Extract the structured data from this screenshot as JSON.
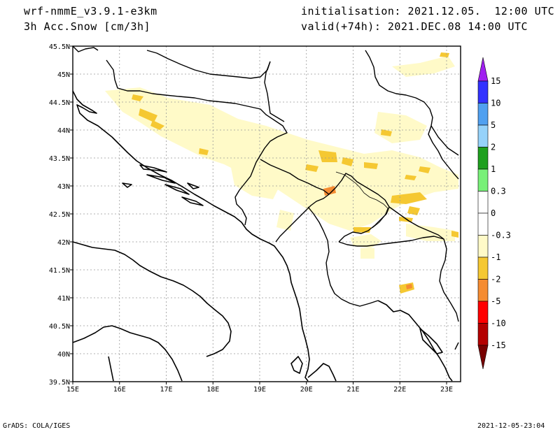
{
  "header": {
    "model": "wrf-nmmE_v3.9.1-e3km",
    "field": "3h Acc.Snow [cm/3h]",
    "init": "initialisation: 2021.12.05.  12:00 UTC",
    "valid": "valid(+74h): 2021.DEC.08 14:00 UTC"
  },
  "footer": {
    "credit": "GrADS: COLA/IGES",
    "timestamp": "2021-12-05-23:04"
  },
  "map": {
    "lon_range": [
      15,
      23.3
    ],
    "lat_range": [
      39.5,
      45.5
    ],
    "lon_ticks": [
      "15E",
      "16E",
      "17E",
      "18E",
      "19E",
      "20E",
      "21E",
      "22E",
      "23E"
    ],
    "lat_ticks": [
      "45.5N",
      "45N",
      "44.5N",
      "44N",
      "43.5N",
      "43N",
      "42.5N",
      "42N",
      "41.5N",
      "41N",
      "40.5N",
      "40N",
      "39.5N"
    ],
    "grid": true,
    "land_color": "#ffffff",
    "boundary_color": "#000000"
  },
  "colorbar": {
    "labels": [
      "15",
      "10",
      "5",
      "2",
      "1",
      "0.3",
      "0",
      "-0.3",
      "-1",
      "-2",
      "-5",
      "-10",
      "-15"
    ],
    "colors": [
      "#a020f0",
      "#3232ff",
      "#50a0f0",
      "#96d2fa",
      "#1ea01e",
      "#78f078",
      "#ffffff",
      "#ffffff",
      "#fffac8",
      "#f5c832",
      "#f58c32",
      "#ff0000",
      "#b40000",
      "#780000"
    ],
    "top_color": "#a020f0",
    "bottom_color": "#780000"
  },
  "snow_patches": {
    "colors": {
      "light": "#fffac8",
      "mid": "#f5c832",
      "high": "#f58c32"
    }
  }
}
